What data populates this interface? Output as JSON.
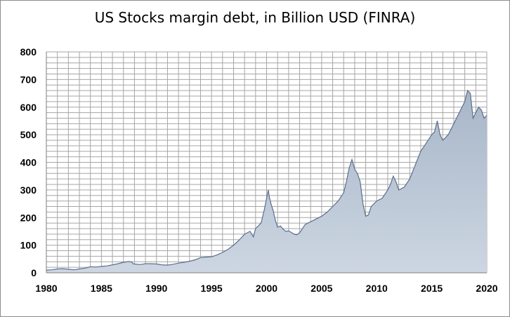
{
  "chart_data": {
    "type": "area",
    "title": "US Stocks margin debt, in Billion USD (FINRA)",
    "xlabel": "",
    "ylabel": "",
    "xlim": [
      1980,
      2020
    ],
    "ylim": [
      0,
      800
    ],
    "x_ticks": [
      1980,
      1985,
      1990,
      1995,
      2000,
      2005,
      2010,
      2015,
      2020
    ],
    "y_ticks": [
      0,
      100,
      200,
      300,
      400,
      500,
      600,
      700,
      800
    ],
    "grid": true,
    "legend": "none",
    "colors": {
      "fill": "#b8c4d4",
      "line": "#5b6f8c",
      "grid": "#a6a6a6",
      "axis": "#7f7f7f"
    },
    "series": [
      {
        "x": [
          1980.0,
          1980.5,
          1981.0,
          1981.5,
          1982.0,
          1982.5,
          1983.0,
          1983.5,
          1984.0,
          1984.5,
          1985.0,
          1985.5,
          1986.0,
          1986.5,
          1987.0,
          1987.5,
          1987.75,
          1987.9,
          1988.0,
          1988.5,
          1989.0,
          1989.5,
          1990.0,
          1990.5,
          1991.0,
          1991.5,
          1992.0,
          1992.5,
          1993.0,
          1993.5,
          1994.0,
          1994.5,
          1995.0,
          1995.5,
          1996.0,
          1996.5,
          1997.0,
          1997.5,
          1998.0,
          1998.5,
          1998.8,
          1999.0,
          1999.5,
          1999.8,
          2000.0,
          2000.15,
          2000.25,
          2000.4,
          2000.6,
          2000.8,
          2001.0,
          2001.25,
          2001.5,
          2001.75,
          2002.0,
          2002.25,
          2002.5,
          2002.75,
          2003.0,
          2003.5,
          2004.0,
          2004.5,
          2005.0,
          2005.5,
          2006.0,
          2006.5,
          2007.0,
          2007.25,
          2007.5,
          2007.75,
          2008.0,
          2008.25,
          2008.5,
          2008.75,
          2009.0,
          2009.25,
          2009.5,
          2010.0,
          2010.5,
          2011.0,
          2011.25,
          2011.5,
          2011.75,
          2012.0,
          2012.5,
          2013.0,
          2013.5,
          2014.0,
          2014.5,
          2015.0,
          2015.25,
          2015.5,
          2015.75,
          2016.0,
          2016.5,
          2017.0,
          2017.5,
          2018.0,
          2018.25,
          2018.5,
          2018.75,
          2019.0,
          2019.25,
          2019.5,
          2019.75,
          2020.0
        ],
        "y": [
          10,
          11,
          14,
          15,
          13,
          11,
          14,
          17,
          22,
          21,
          23,
          25,
          29,
          33,
          38,
          41,
          39,
          32,
          32,
          30,
          33,
          33,
          32,
          29,
          28,
          31,
          35,
          38,
          42,
          47,
          55,
          57,
          58,
          65,
          74,
          85,
          100,
          118,
          140,
          150,
          130,
          160,
          180,
          230,
          270,
          300,
          275,
          250,
          225,
          190,
          165,
          170,
          158,
          150,
          152,
          146,
          140,
          138,
          145,
          175,
          185,
          195,
          205,
          220,
          240,
          260,
          290,
          330,
          380,
          410,
          375,
          360,
          330,
          250,
          205,
          210,
          240,
          260,
          270,
          300,
          320,
          350,
          330,
          300,
          310,
          340,
          390,
          440,
          470,
          500,
          510,
          550,
          500,
          480,
          500,
          540,
          580,
          620,
          660,
          650,
          560,
          580,
          600,
          590,
          560,
          570
        ]
      }
    ]
  }
}
